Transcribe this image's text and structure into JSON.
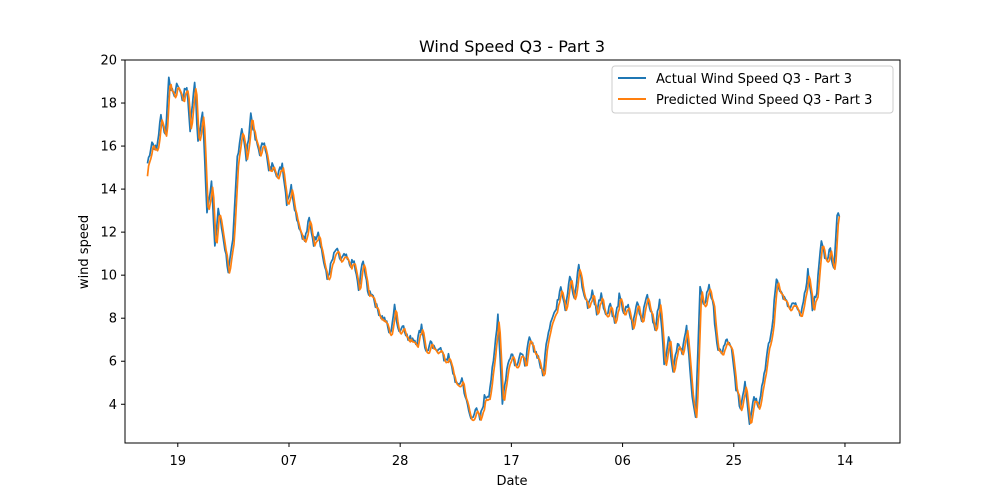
{
  "chart_data": {
    "type": "line",
    "title": "Wind Speed Q3 - Part 3",
    "xlabel": "Date",
    "ylabel": "wind speed",
    "ylim": [
      2.2,
      20
    ],
    "xlim": [
      -20,
      670
    ],
    "x_tick_positions": [
      27,
      126,
      225,
      324,
      423,
      522,
      621
    ],
    "x_tick_labels": [
      "19",
      "07",
      "28",
      "17",
      "06",
      "25",
      "14"
    ],
    "y_ticks": [
      4,
      6,
      8,
      10,
      12,
      14,
      16,
      18,
      20
    ],
    "grid": false,
    "legend_position": "top-right",
    "legend": [
      "Actual Wind Speed Q3 - Part 3",
      "Predicted Wind Speed Q3 - Part 3"
    ],
    "colors": {
      "actual": "#1f77b4",
      "predicted": "#ff7f0e"
    },
    "keypoints": [
      [
        0,
        15.2
      ],
      [
        4,
        16.2
      ],
      [
        8,
        15.8
      ],
      [
        12,
        17.4
      ],
      [
        16,
        16.5
      ],
      [
        19,
        19.2
      ],
      [
        23,
        18.3
      ],
      [
        27,
        18.9
      ],
      [
        31,
        18.2
      ],
      [
        35,
        18.8
      ],
      [
        38,
        16.8
      ],
      [
        42,
        19.1
      ],
      [
        45,
        16.1
      ],
      [
        49,
        17.6
      ],
      [
        53,
        13.0
      ],
      [
        57,
        14.4
      ],
      [
        60,
        11.2
      ],
      [
        63,
        13.1
      ],
      [
        68,
        11.6
      ],
      [
        72,
        10.2
      ],
      [
        76,
        11.5
      ],
      [
        80,
        15.5
      ],
      [
        84,
        16.9
      ],
      [
        88,
        15.4
      ],
      [
        92,
        17.5
      ],
      [
        96,
        16.3
      ],
      [
        100,
        15.7
      ],
      [
        104,
        16.3
      ],
      [
        108,
        14.8
      ],
      [
        112,
        15.2
      ],
      [
        116,
        14.6
      ],
      [
        120,
        15.2
      ],
      [
        124,
        13.4
      ],
      [
        128,
        14.1
      ],
      [
        132,
        12.9
      ],
      [
        136,
        12.1
      ],
      [
        140,
        11.6
      ],
      [
        144,
        12.6
      ],
      [
        148,
        11.5
      ],
      [
        152,
        12.1
      ],
      [
        156,
        10.9
      ],
      [
        160,
        9.8
      ],
      [
        164,
        10.6
      ],
      [
        168,
        11.2
      ],
      [
        172,
        10.7
      ],
      [
        176,
        10.9
      ],
      [
        180,
        10.5
      ],
      [
        184,
        10.6
      ],
      [
        188,
        9.3
      ],
      [
        192,
        10.8
      ],
      [
        196,
        9.2
      ],
      [
        200,
        9.2
      ],
      [
        204,
        8.5
      ],
      [
        208,
        8.1
      ],
      [
        212,
        7.9
      ],
      [
        216,
        7.2
      ],
      [
        220,
        8.5
      ],
      [
        224,
        7.4
      ],
      [
        228,
        7.7
      ],
      [
        232,
        7.0
      ],
      [
        236,
        7.1
      ],
      [
        240,
        6.9
      ],
      [
        244,
        7.7
      ],
      [
        248,
        6.4
      ],
      [
        252,
        6.8
      ],
      [
        256,
        6.5
      ],
      [
        260,
        6.7
      ],
      [
        264,
        6.1
      ],
      [
        268,
        6.2
      ],
      [
        272,
        5.5
      ],
      [
        276,
        4.8
      ],
      [
        280,
        5.2
      ],
      [
        284,
        4.1
      ],
      [
        288,
        3.3
      ],
      [
        292,
        3.8
      ],
      [
        296,
        3.3
      ],
      [
        300,
        4.3
      ],
      [
        304,
        4.5
      ],
      [
        308,
        5.9
      ],
      [
        312,
        8.2
      ],
      [
        316,
        4.1
      ],
      [
        320,
        5.6
      ],
      [
        324,
        6.5
      ],
      [
        328,
        5.8
      ],
      [
        332,
        6.4
      ],
      [
        336,
        5.9
      ],
      [
        340,
        7.0
      ],
      [
        344,
        6.6
      ],
      [
        348,
        6.2
      ],
      [
        352,
        5.3
      ],
      [
        356,
        7.2
      ],
      [
        360,
        8.1
      ],
      [
        364,
        8.4
      ],
      [
        368,
        9.6
      ],
      [
        372,
        8.5
      ],
      [
        376,
        10.0
      ],
      [
        380,
        8.8
      ],
      [
        384,
        10.5
      ],
      [
        388,
        9.2
      ],
      [
        392,
        8.6
      ],
      [
        396,
        9.2
      ],
      [
        400,
        8.3
      ],
      [
        404,
        9.2
      ],
      [
        408,
        8.1
      ],
      [
        412,
        8.7
      ],
      [
        416,
        7.8
      ],
      [
        420,
        9.0
      ],
      [
        424,
        8.3
      ],
      [
        428,
        8.5
      ],
      [
        432,
        7.6
      ],
      [
        436,
        8.8
      ],
      [
        440,
        7.9
      ],
      [
        444,
        9.1
      ],
      [
        448,
        8.4
      ],
      [
        452,
        7.4
      ],
      [
        456,
        9.0
      ],
      [
        460,
        5.8
      ],
      [
        464,
        7.2
      ],
      [
        468,
        5.6
      ],
      [
        472,
        6.9
      ],
      [
        476,
        6.5
      ],
      [
        480,
        7.5
      ],
      [
        484,
        4.9
      ],
      [
        488,
        3.4
      ],
      [
        492,
        9.3
      ],
      [
        496,
        8.6
      ],
      [
        500,
        9.6
      ],
      [
        504,
        8.4
      ],
      [
        508,
        6.4
      ],
      [
        512,
        6.5
      ],
      [
        516,
        7.0
      ],
      [
        520,
        6.5
      ],
      [
        524,
        4.8
      ],
      [
        528,
        3.8
      ],
      [
        532,
        5.1
      ],
      [
        536,
        3.2
      ],
      [
        540,
        4.4
      ],
      [
        544,
        4.0
      ],
      [
        548,
        5.1
      ],
      [
        552,
        6.4
      ],
      [
        556,
        7.5
      ],
      [
        560,
        9.9
      ],
      [
        564,
        9.2
      ],
      [
        568,
        8.8
      ],
      [
        572,
        8.4
      ],
      [
        576,
        8.7
      ],
      [
        580,
        8.2
      ],
      [
        584,
        8.6
      ],
      [
        588,
        10.2
      ],
      [
        592,
        8.5
      ],
      [
        596,
        9.3
      ],
      [
        600,
        11.6
      ],
      [
        604,
        10.7
      ],
      [
        608,
        11.2
      ],
      [
        611,
        10.3
      ],
      [
        614,
        12.8
      ],
      [
        616,
        12.7
      ]
    ]
  }
}
